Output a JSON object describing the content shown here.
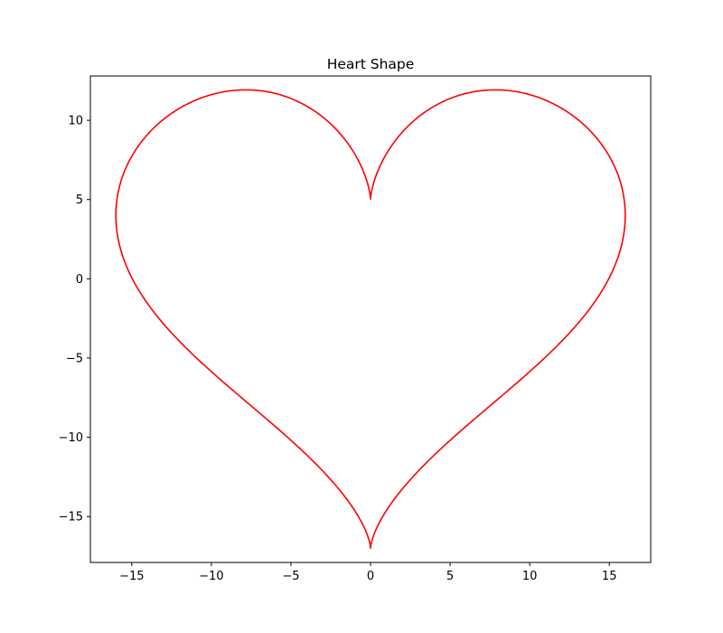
{
  "chart_data": {
    "type": "line",
    "title": "Heart Shape",
    "xlabel": "",
    "ylabel": "",
    "xlim": [
      -17.6,
      17.6
    ],
    "ylim": [
      -17.9,
      12.8
    ],
    "grid": false,
    "legend": "none",
    "x_ticks": [
      -15,
      -10,
      -5,
      0,
      5,
      10,
      15
    ],
    "x_tick_labels": [
      "−15",
      "−10",
      "−5",
      "0",
      "5",
      "10",
      "15"
    ],
    "y_ticks": [
      -15,
      -10,
      -5,
      0,
      5,
      10
    ],
    "y_tick_labels": [
      "−15",
      "−10",
      "−5",
      "0",
      "5",
      "10"
    ],
    "series": [
      {
        "color": "#ff0000",
        "equation": {
          "x": "16*sin(t)^3",
          "y": "13*cos(t) - 5*cos(2t) - 2*cos(3t) - cos(4t)",
          "t_range": [
            0,
            6.283185307179586
          ]
        }
      }
    ]
  }
}
